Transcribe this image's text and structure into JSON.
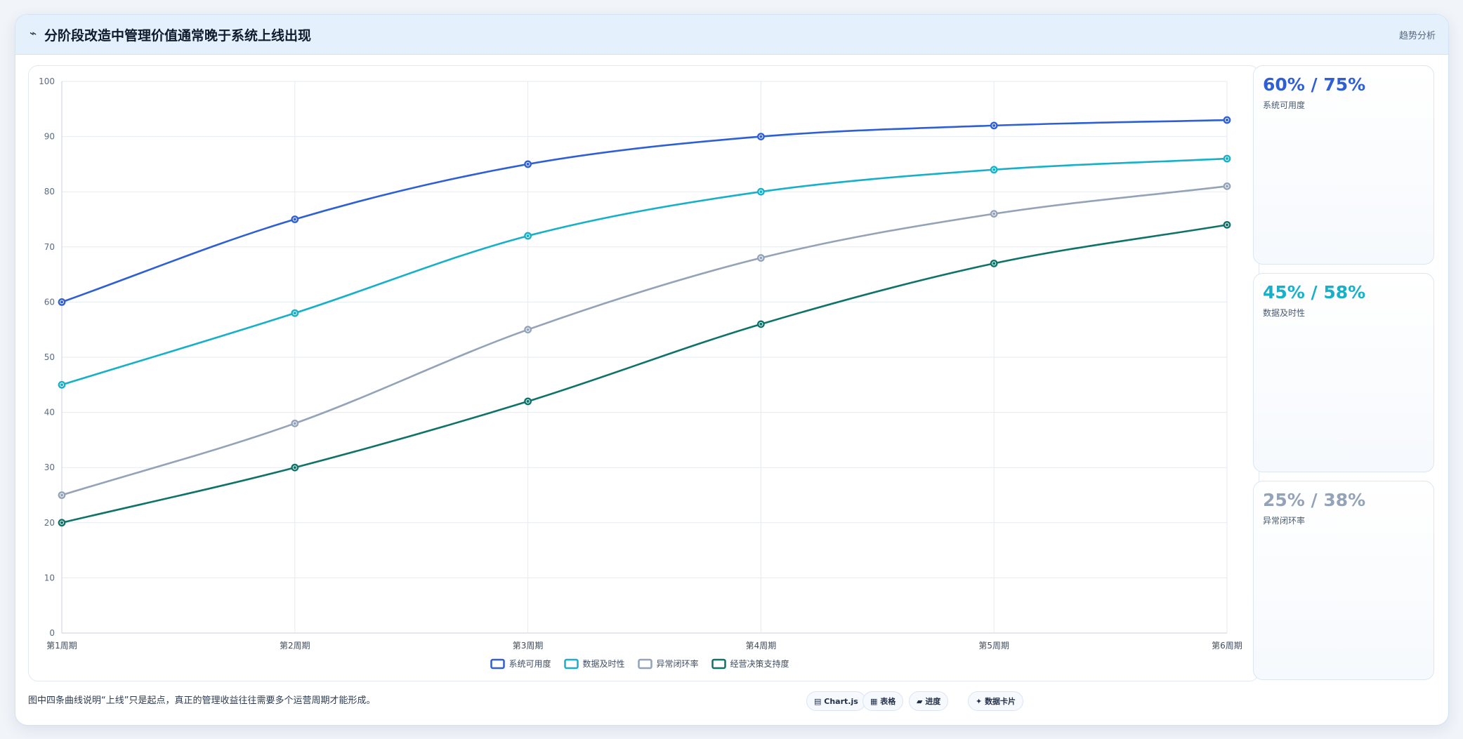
{
  "header": {
    "icon": "⌁",
    "title": "分阶段改造中管理价值通常晚于系统上线出现",
    "tag": "趋势分析"
  },
  "chart_data": {
    "type": "line",
    "title": "",
    "xlabel": "",
    "ylabel": "",
    "categories": [
      "第1周期",
      "第2周期",
      "第3周期",
      "第4周期",
      "第5周期",
      "第6周期"
    ],
    "ylim": [
      0,
      100
    ],
    "yticks": [
      0,
      10,
      20,
      30,
      40,
      50,
      60,
      70,
      80,
      90,
      100
    ],
    "grid": true,
    "legend_position": "bottom",
    "series": [
      {
        "name": "系统可用度",
        "color": "#2e5fd6",
        "values": [
          60,
          75,
          85,
          90,
          92,
          93
        ]
      },
      {
        "name": "数据及时性",
        "color": "#17b0c9",
        "values": [
          45,
          58,
          72,
          80,
          84,
          86
        ]
      },
      {
        "name": "异常闭环率",
        "color": "#94a3b8",
        "values": [
          25,
          38,
          55,
          68,
          76,
          81
        ]
      },
      {
        "name": "经营决策支持度",
        "color": "#0f7369",
        "values": [
          20,
          30,
          42,
          56,
          67,
          74
        ]
      }
    ]
  },
  "kpis": [
    {
      "value": "60% / 75%",
      "label": "系统可用度",
      "color": "#2e5fd6"
    },
    {
      "value": "45% / 58%",
      "label": "数据及时性",
      "color": "#17b0c9"
    },
    {
      "value": "25% / 38%",
      "label": "异常闭环率",
      "color": "#94a3b8"
    }
  ],
  "footnote": "图中四条曲线说明“上线”只是起点，真正的管理收益往往需要多个运营周期才能形成。",
  "chips": [
    {
      "icon": "▤",
      "label": "Chart.js"
    },
    {
      "icon": "▦",
      "label": "表格"
    },
    {
      "icon": "▰",
      "label": "进度"
    },
    {
      "icon": "✦",
      "label": "数据卡片"
    }
  ]
}
